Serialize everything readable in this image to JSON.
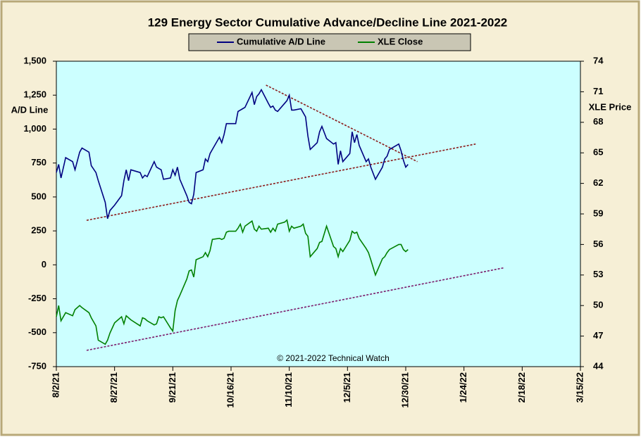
{
  "chart_data": {
    "type": "line",
    "title": "129 Energy Sector Cumulative Advance/Decline Line 2021-2022",
    "ylabel": "A/D Line",
    "y2label": "XLE Price",
    "annotation": "© 2021-2022 Technical Watch",
    "xlim": [
      "8/2/21",
      "3/15/22"
    ],
    "xticks": [
      "8/2/21",
      "8/27/21",
      "9/21/21",
      "10/16/21",
      "11/10/21",
      "12/5/21",
      "12/30/21",
      "1/24/22",
      "2/18/22",
      "3/15/22"
    ],
    "ylim": [
      -750,
      1500
    ],
    "yticks": [
      {
        "value": -750,
        "label": "-750"
      },
      {
        "value": -500,
        "label": "-500"
      },
      {
        "value": -250,
        "label": "-250"
      },
      0,
      250,
      500,
      750,
      {
        "value": 1000,
        "label": "1,000"
      },
      {
        "value": 1250,
        "label": "1,250"
      },
      {
        "value": 1500,
        "label": "1,500"
      }
    ],
    "y2lim": [
      44,
      74
    ],
    "y2ticks": [
      44,
      47,
      50,
      53,
      56,
      59,
      62,
      65,
      68,
      71,
      74
    ],
    "legend": "top",
    "x": [
      "8/2/21",
      "8/3/21",
      "8/4/21",
      "8/6/21",
      "8/9/21",
      "8/10/21",
      "8/12/21",
      "8/13/21",
      "8/16/21",
      "8/17/21",
      "8/19/21",
      "8/20/21",
      "8/23/21",
      "8/24/21",
      "8/25/21",
      "8/27/21",
      "8/30/21",
      "8/31/21",
      "9/1/21",
      "9/2/21",
      "9/3/21",
      "9/7/21",
      "9/8/21",
      "9/9/21",
      "9/10/21",
      "9/13/21",
      "9/14/21",
      "9/15/21",
      "9/16/21",
      "9/17/21",
      "9/20/21",
      "9/21/21",
      "9/22/21",
      "9/23/21",
      "9/24/21",
      "9/27/21",
      "9/28/21",
      "9/29/21",
      "9/30/21",
      "10/1/21",
      "10/4/21",
      "10/5/21",
      "10/6/21",
      "10/7/21",
      "10/8/21",
      "10/11/21",
      "10/12/21",
      "10/13/21",
      "10/14/21",
      "10/15/21",
      "10/18/21",
      "10/19/21",
      "10/20/21",
      "10/21/21",
      "10/22/21",
      "10/25/21",
      "10/26/21",
      "10/27/21",
      "10/28/21",
      "10/29/21",
      "11/1/21",
      "11/2/21",
      "11/3/21",
      "11/4/21",
      "11/5/21",
      "11/8/21",
      "11/9/21",
      "11/10/21",
      "11/11/21",
      "11/12/21",
      "11/15/21",
      "11/16/21",
      "11/17/21",
      "11/18/21",
      "11/19/21",
      "11/22/21",
      "11/23/21",
      "11/24/21",
      "11/26/21",
      "11/29/21",
      "11/30/21",
      "12/1/21",
      "12/2/21",
      "12/3/21",
      "12/6/21",
      "12/7/21",
      "12/8/21",
      "12/9/21",
      "12/10/21",
      "12/13/21",
      "12/14/21",
      "12/15/21",
      "12/17/21",
      "12/20/21",
      "12/21/21",
      "12/22/21",
      "12/23/21",
      "12/27/21",
      "12/28/21",
      "12/29/21",
      "12/30/21",
      "12/31/21"
    ],
    "series": [
      {
        "name": "Cumulative A/D Line",
        "color": "#000080",
        "axis": "y",
        "values": [
          680,
          740,
          640,
          790,
          760,
          700,
          830,
          860,
          830,
          730,
          680,
          620,
          460,
          340,
          400,
          440,
          510,
          620,
          700,
          620,
          700,
          680,
          640,
          660,
          650,
          760,
          720,
          710,
          700,
          630,
          640,
          700,
          660,
          720,
          630,
          510,
          460,
          450,
          520,
          680,
          700,
          780,
          760,
          820,
          850,
          940,
          900,
          960,
          1040,
          1040,
          1040,
          1130,
          1140,
          1150,
          1160,
          1270,
          1180,
          1240,
          1260,
          1290,
          1190,
          1160,
          1170,
          1140,
          1130,
          1190,
          1210,
          1250,
          1140,
          1140,
          1150,
          1120,
          1090,
          950,
          850,
          900,
          980,
          1020,
          930,
          890,
          900,
          740,
          840,
          760,
          820,
          980,
          900,
          960,
          880,
          760,
          780,
          720,
          630,
          720,
          780,
          800,
          850,
          890,
          840,
          770,
          720,
          740
        ]
      },
      {
        "name": "XLE Close",
        "color": "#008000",
        "axis": "y2",
        "values": [
          48.9,
          50.0,
          48.5,
          49.3,
          49.0,
          49.6,
          50.0,
          49.8,
          49.3,
          48.8,
          48.0,
          46.6,
          46.2,
          46.6,
          47.3,
          48.3,
          48.9,
          48.2,
          49.0,
          48.8,
          48.6,
          48.0,
          48.8,
          48.7,
          48.5,
          48.1,
          48.2,
          48.9,
          48.8,
          48.9,
          47.8,
          47.5,
          49.5,
          50.5,
          51.0,
          52.6,
          53.4,
          53.5,
          52.8,
          54.5,
          54.8,
          55.2,
          54.8,
          55.4,
          56.5,
          56.6,
          56.5,
          56.6,
          57.2,
          57.3,
          57.3,
          57.6,
          58.0,
          57.2,
          57.8,
          58.3,
          57.5,
          57.3,
          57.8,
          57.5,
          57.6,
          57.2,
          57.6,
          57.3,
          58.0,
          58.2,
          58.4,
          57.3,
          57.8,
          57.6,
          57.8,
          58.0,
          57.1,
          56.8,
          54.8,
          55.6,
          56.2,
          56.3,
          57.8,
          55.8,
          55.6,
          54.8,
          55.6,
          55.3,
          56.4,
          57.3,
          57.1,
          57.2,
          56.6,
          55.6,
          55.2,
          54.5,
          53.0,
          54.6,
          54.8,
          55.2,
          55.5,
          56.0,
          56.0,
          55.5,
          55.3,
          55.5
        ]
      }
    ],
    "trend_lines": [
      {
        "color": "#8b1a1a",
        "axis": "y",
        "x": [
          "8/15/21",
          "1/29/22"
        ],
        "values": [
          328,
          890
        ]
      },
      {
        "color": "#8b1a1a",
        "axis": "y",
        "x": [
          "10/31/21",
          "1/4/22"
        ],
        "values": [
          1324,
          760
        ]
      },
      {
        "color": "#7b1a6a",
        "axis": "y2",
        "x": [
          "8/15/21",
          "2/10/22"
        ],
        "values": [
          45.6,
          53.7
        ]
      }
    ]
  }
}
